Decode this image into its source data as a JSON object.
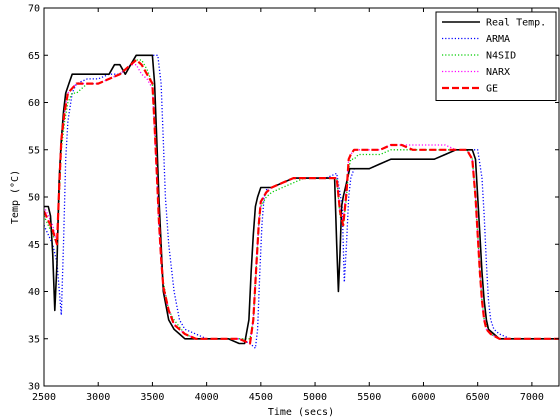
{
  "chart_data": {
    "type": "line",
    "title": "",
    "xlabel": "Time (secs)",
    "ylabel": "Temp (°C)",
    "xlim": [
      2500,
      7250
    ],
    "ylim": [
      30,
      70
    ],
    "x_ticks": [
      2500,
      3000,
      3500,
      4000,
      4500,
      5000,
      5500,
      6000,
      6500,
      7000
    ],
    "y_ticks": [
      30,
      35,
      40,
      45,
      50,
      55,
      60,
      65,
      70
    ],
    "x_tick_labels": [
      "2500",
      "3000",
      "3500",
      "4000",
      "4500",
      "5000",
      "5500",
      "6000",
      "6500",
      "7000"
    ],
    "y_tick_labels": [
      "30",
      "35",
      "40",
      "45",
      "50",
      "55",
      "60",
      "65",
      "70"
    ],
    "grid": false,
    "legend_position": "top-right",
    "series": [
      {
        "name": "Real Temp.",
        "color": "#000000",
        "style": "solid",
        "x": [
          2500,
          2520,
          2540,
          2560,
          2580,
          2600,
          2620,
          2640,
          2660,
          2680,
          2700,
          2730,
          2760,
          2800,
          2900,
          3000,
          3100,
          3150,
          3200,
          3250,
          3300,
          3350,
          3400,
          3450,
          3500,
          3520,
          3540,
          3560,
          3580,
          3600,
          3650,
          3700,
          3750,
          3800,
          3900,
          4000,
          4100,
          4200,
          4300,
          4350,
          4390,
          4410,
          4430,
          4450,
          4470,
          4500,
          4600,
          4700,
          4800,
          4900,
          5000,
          5100,
          5180,
          5200,
          5215,
          5230,
          5245,
          5260,
          5280,
          5300,
          5320,
          5340,
          5360,
          5400,
          5500,
          5600,
          5700,
          5800,
          5900,
          6000,
          6100,
          6200,
          6300,
          6350,
          6400,
          6420,
          6450,
          6480,
          6500,
          6520,
          6540,
          6560,
          6580,
          6600,
          6650,
          6700,
          6800,
          6900,
          7000,
          7100,
          7250
        ],
        "y": [
          49,
          49,
          49,
          48,
          44,
          38,
          43,
          52,
          56,
          59,
          61,
          62,
          63,
          63,
          63,
          63,
          63,
          64,
          64,
          63,
          64,
          65,
          65,
          65,
          65,
          62,
          56,
          50,
          45,
          40,
          37,
          36,
          35.5,
          35,
          35,
          35,
          35,
          35,
          34.5,
          34.5,
          37,
          42,
          46,
          49,
          50,
          51,
          51,
          51.5,
          52,
          52,
          52,
          52,
          52,
          45,
          40,
          44,
          49,
          50,
          51,
          52,
          53,
          53,
          53,
          53,
          53,
          53.5,
          54,
          54,
          54,
          54,
          54,
          54.5,
          55,
          55,
          55,
          55,
          55,
          54,
          50,
          46,
          42,
          39,
          37,
          36,
          35.5,
          35,
          35,
          35,
          35,
          35,
          35
        ]
      },
      {
        "name": "ARMA",
        "color": "#0000ff",
        "style": "dotted",
        "x": [
          2500,
          2540,
          2580,
          2620,
          2660,
          2680,
          2700,
          2720,
          2760,
          2800,
          2900,
          3000,
          3100,
          3200,
          3300,
          3350,
          3400,
          3450,
          3500,
          3550,
          3580,
          3600,
          3620,
          3650,
          3700,
          3750,
          3800,
          3900,
          4000,
          4100,
          4200,
          4300,
          4400,
          4450,
          4470,
          4490,
          4510,
          4530,
          4560,
          4600,
          4700,
          4800,
          4900,
          5000,
          5100,
          5200,
          5250,
          5270,
          5290,
          5310,
          5330,
          5360,
          5400,
          5500,
          5600,
          5700,
          5800,
          5900,
          6000,
          6100,
          6200,
          6300,
          6400,
          6500,
          6540,
          6560,
          6580,
          6600,
          6620,
          6650,
          6700,
          6800,
          6900,
          7000,
          7100,
          7250
        ],
        "y": [
          47,
          46,
          45,
          43,
          37.5,
          45,
          54,
          58,
          61,
          62,
          62.5,
          62.5,
          63,
          63,
          64,
          65,
          65,
          65,
          65,
          65,
          62,
          56,
          50,
          45,
          40,
          37,
          36,
          35.5,
          35,
          35,
          35,
          35,
          34.5,
          34,
          36,
          42,
          47,
          50,
          51,
          51,
          51.5,
          52,
          52,
          52,
          52,
          52.5,
          49,
          41,
          45,
          50,
          52,
          53,
          53,
          53,
          53.5,
          54,
          54,
          54,
          54,
          54,
          54.5,
          55,
          55,
          55,
          52,
          48,
          43,
          39,
          37,
          36,
          35.5,
          35,
          35,
          35,
          35,
          35
        ]
      },
      {
        "name": "N4SID",
        "color": "#00cc00",
        "style": "dotted",
        "x": [
          2500,
          2540,
          2580,
          2620,
          2640,
          2660,
          2690,
          2720,
          2760,
          2800,
          2900,
          3000,
          3100,
          3200,
          3300,
          3350,
          3400,
          3450,
          3500,
          3520,
          3540,
          3560,
          3580,
          3600,
          3650,
          3700,
          3800,
          3900,
          4000,
          4100,
          4200,
          4300,
          4400,
          4430,
          4460,
          4480,
          4500,
          4550,
          4600,
          4700,
          4800,
          4900,
          5000,
          5100,
          5200,
          5230,
          5260,
          5290,
          5310,
          5330,
          5360,
          5400,
          5500,
          5600,
          5700,
          5800,
          5900,
          6000,
          6100,
          6200,
          6300,
          6400,
          6450,
          6480,
          6500,
          6520,
          6540,
          6560,
          6580,
          6620,
          6700,
          6800,
          6900,
          7000,
          7100,
          7250
        ],
        "y": [
          48,
          47,
          46,
          45,
          50,
          55,
          58,
          60,
          61,
          61,
          62,
          62,
          62.5,
          63,
          64,
          64.5,
          64.5,
          63.5,
          62,
          58,
          53,
          48,
          44,
          41,
          38,
          37,
          35.5,
          35,
          35,
          35,
          35,
          35,
          35,
          37,
          43,
          47,
          49,
          50,
          50.5,
          51,
          51.5,
          52,
          52,
          52,
          52,
          48,
          47,
          50,
          53,
          54,
          54,
          54.5,
          54.5,
          54.5,
          55,
          55,
          55,
          55,
          55,
          55,
          55,
          55,
          54,
          50,
          46,
          42,
          39,
          37,
          36.5,
          35.5,
          35,
          35,
          35,
          35,
          35,
          35
        ]
      },
      {
        "name": "NARX",
        "color": "#ff00ff",
        "style": "dotted",
        "x": [
          2500,
          2540,
          2580,
          2620,
          2640,
          2660,
          2690,
          2720,
          2760,
          2800,
          2900,
          3000,
          3100,
          3200,
          3300,
          3350,
          3400,
          3450,
          3500,
          3520,
          3540,
          3560,
          3580,
          3600,
          3650,
          3700,
          3800,
          3900,
          4000,
          4100,
          4200,
          4300,
          4400,
          4430,
          4460,
          4480,
          4500,
          4550,
          4600,
          4700,
          4800,
          4900,
          5000,
          5100,
          5200,
          5230,
          5260,
          5290,
          5310,
          5330,
          5360,
          5400,
          5500,
          5600,
          5700,
          5800,
          5900,
          6000,
          6100,
          6200,
          6300,
          6400,
          6450,
          6480,
          6500,
          6520,
          6540,
          6560,
          6580,
          6620,
          6700,
          6800,
          6900,
          7000,
          7100,
          7250
        ],
        "y": [
          49,
          48,
          47,
          45,
          51,
          56,
          59,
          61,
          61.5,
          62,
          62,
          62,
          62.5,
          63,
          64,
          64,
          63,
          62.5,
          61.5,
          57,
          52,
          47,
          43,
          40.5,
          38,
          36.5,
          35.5,
          35,
          35,
          35,
          35,
          35,
          34.5,
          37,
          43,
          47,
          49.5,
          50.5,
          51,
          51.5,
          52,
          52,
          52,
          52,
          52,
          48.5,
          47.5,
          51,
          54,
          54.5,
          55,
          55,
          55,
          55,
          55.5,
          55.5,
          55.5,
          55.5,
          55.5,
          55.5,
          55,
          55,
          54,
          50,
          46,
          42,
          39,
          37,
          36,
          35.5,
          35,
          35,
          35,
          35,
          35,
          35
        ]
      },
      {
        "name": "GE",
        "color": "#ff0000",
        "style": "dashed",
        "x": [
          2500,
          2540,
          2580,
          2620,
          2640,
          2660,
          2690,
          2720,
          2760,
          2800,
          2900,
          3000,
          3100,
          3200,
          3300,
          3350,
          3400,
          3450,
          3500,
          3520,
          3540,
          3560,
          3580,
          3600,
          3650,
          3700,
          3800,
          3900,
          4000,
          4100,
          4200,
          4300,
          4400,
          4430,
          4460,
          4480,
          4500,
          4550,
          4600,
          4700,
          4800,
          4900,
          5000,
          5100,
          5200,
          5230,
          5260,
          5290,
          5310,
          5330,
          5360,
          5400,
          5500,
          5600,
          5700,
          5800,
          5900,
          6000,
          6100,
          6200,
          6300,
          6400,
          6450,
          6480,
          6500,
          6520,
          6540,
          6560,
          6580,
          6620,
          6700,
          6800,
          6900,
          7000,
          7100,
          7250
        ],
        "y": [
          48.5,
          47.5,
          46.5,
          45,
          51,
          56,
          59,
          61,
          61.5,
          62,
          62,
          62,
          62.5,
          63,
          64,
          64.5,
          64,
          63,
          62,
          57.5,
          52.5,
          47.5,
          43.5,
          40.5,
          38,
          36.5,
          35.5,
          35,
          35,
          35,
          35,
          35,
          34.5,
          37,
          43,
          47,
          49.5,
          50.5,
          51,
          51.5,
          52,
          52,
          52,
          52,
          52,
          48.5,
          47,
          50.5,
          54,
          54.5,
          55,
          55,
          55,
          55,
          55.5,
          55.5,
          55,
          55,
          55,
          55,
          55,
          55,
          54,
          50,
          46,
          42,
          39,
          37,
          36,
          35.5,
          35,
          35,
          35,
          35,
          35,
          35
        ]
      }
    ]
  }
}
